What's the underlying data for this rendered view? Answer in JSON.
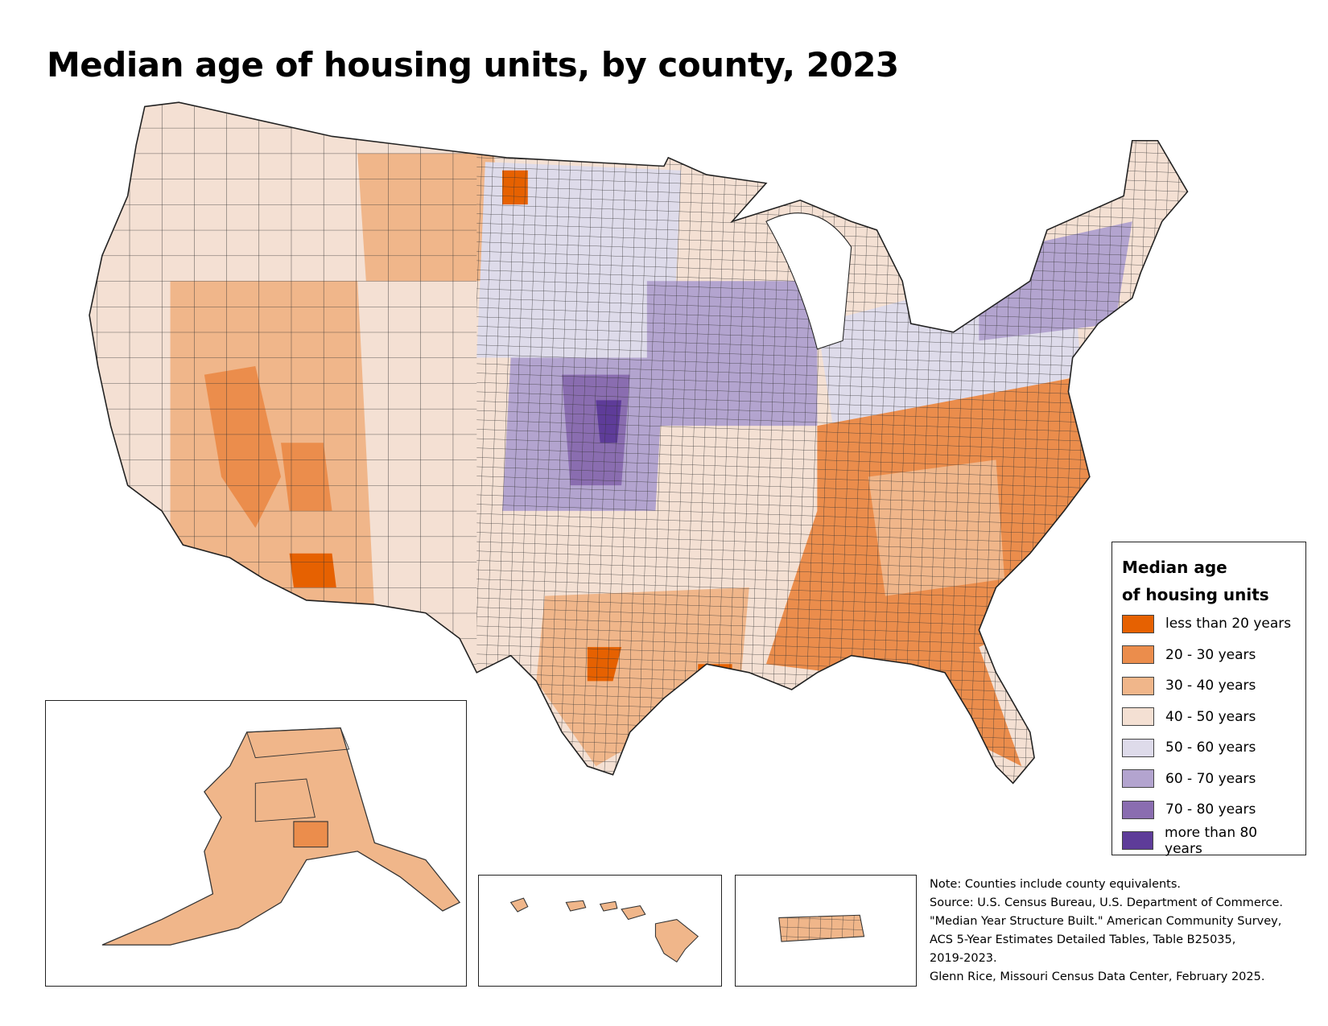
{
  "title": "Median age of housing units, by county, 2023",
  "legend": {
    "title_line1": "Median age",
    "title_line2": "of housing units",
    "items": [
      {
        "label": "less than 20 years",
        "color": "#e66101"
      },
      {
        "label": "20 - 30 years",
        "color": "#eb8d4c"
      },
      {
        "label": "30 - 40 years",
        "color": "#f0b68a"
      },
      {
        "label": "40 - 50 years",
        "color": "#f4e0d3"
      },
      {
        "label": "50 - 60 years",
        "color": "#dedbea"
      },
      {
        "label": "60 - 70 years",
        "color": "#b3a4cf"
      },
      {
        "label": "70 - 80 years",
        "color": "#8a6db0"
      },
      {
        "label": "more than 80 years",
        "color": "#5e3c99"
      }
    ]
  },
  "notes": [
    "Note: Counties include county equivalents.",
    "Source: U.S. Census Bureau, U.S. Department of Commerce.",
    "\"Median Year Structure Built.\" American Community Survey,",
    "ACS 5-Year Estimates Detailed Tables, Table B25035,",
    "2019-2023.",
    "Glenn Rice, Missouri Census Data Center, February 2025."
  ]
}
